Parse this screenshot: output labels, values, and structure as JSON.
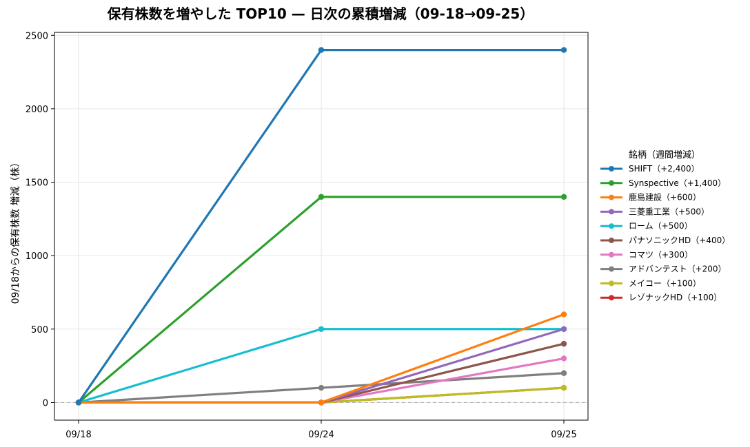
{
  "chart_data": {
    "type": "line",
    "title": "保有株数を増やした TOP10 — 日次の累積増減（09-18→09-25）",
    "xlabel": "",
    "ylabel": "09/18からの保有株数 増減（株）",
    "categories": [
      "09/18",
      "09/24",
      "09/25"
    ],
    "ylim": [
      -120,
      2520
    ],
    "yticks": [
      0,
      500,
      1000,
      1500,
      2000,
      2500
    ],
    "grid": true,
    "zero_line": true,
    "legend_position": "right",
    "legend_title": "銘柄（週間増減）",
    "series": [
      {
        "name": "SHIFT（+2,400）",
        "values": [
          0,
          2400,
          2400
        ],
        "color": "#1f77b4"
      },
      {
        "name": "Synspective（+1,400）",
        "values": [
          0,
          1400,
          1400
        ],
        "color": "#2ca02c"
      },
      {
        "name": "鹿島建設（+600）",
        "values": [
          0,
          0,
          600
        ],
        "color": "#ff7f0e"
      },
      {
        "name": "三菱重工業（+500）",
        "values": [
          0,
          0,
          500
        ],
        "color": "#9467bd"
      },
      {
        "name": "ローム（+500）",
        "values": [
          0,
          500,
          500
        ],
        "color": "#17becf"
      },
      {
        "name": "パナソニックHD（+400）",
        "values": [
          0,
          0,
          400
        ],
        "color": "#8c564b"
      },
      {
        "name": "コマツ（+300）",
        "values": [
          0,
          0,
          300
        ],
        "color": "#e377c2"
      },
      {
        "name": "アドバンテスト（+200）",
        "values": [
          0,
          100,
          200
        ],
        "color": "#7f7f7f"
      },
      {
        "name": "メイコー（+100）",
        "values": [
          0,
          0,
          100
        ],
        "color": "#bcbd22"
      },
      {
        "name": "レゾナックHD（+100）",
        "values": [
          0,
          0,
          100
        ],
        "color": "#d62728"
      }
    ]
  }
}
